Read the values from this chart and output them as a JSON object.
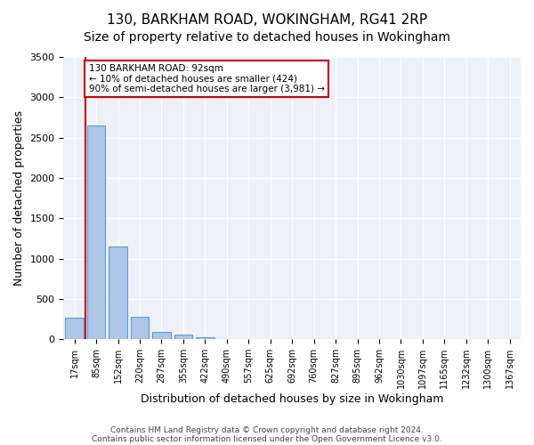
{
  "title": "130, BARKHAM ROAD, WOKINGHAM, RG41 2RP",
  "subtitle": "Size of property relative to detached houses in Wokingham",
  "xlabel": "Distribution of detached houses by size in Wokingham",
  "ylabel": "Number of detached properties",
  "bin_labels": [
    "17sqm",
    "85sqm",
    "152sqm",
    "220sqm",
    "287sqm",
    "355sqm",
    "422sqm",
    "490sqm",
    "557sqm",
    "625sqm",
    "692sqm",
    "760sqm",
    "827sqm",
    "895sqm",
    "962sqm",
    "1030sqm",
    "1097sqm",
    "1165sqm",
    "1232sqm",
    "1300sqm",
    "1367sqm"
  ],
  "bar_heights": [
    270,
    2650,
    1150,
    280,
    90,
    60,
    30,
    0,
    0,
    0,
    0,
    0,
    0,
    0,
    0,
    0,
    0,
    0,
    0,
    0,
    0
  ],
  "bar_color": "#aec6e8",
  "bar_edge_color": "#5b9bd5",
  "vline_color": "#cc0000",
  "annotation_text": "130 BARKHAM ROAD: 92sqm\n← 10% of detached houses are smaller (424)\n90% of semi-detached houses are larger (3,981) →",
  "annotation_box_color": "#cc0000",
  "ylim": [
    0,
    3500
  ],
  "yticks": [
    0,
    500,
    1000,
    1500,
    2000,
    2500,
    3000,
    3500
  ],
  "background_color": "#eef2f8",
  "grid_color": "#ffffff",
  "footer1": "Contains HM Land Registry data © Crown copyright and database right 2024.",
  "footer2": "Contains public sector information licensed under the Open Government Licence v3.0.",
  "title_fontsize": 11,
  "subtitle_fontsize": 10,
  "tick_fontsize": 7,
  "vline_position": 0.5
}
